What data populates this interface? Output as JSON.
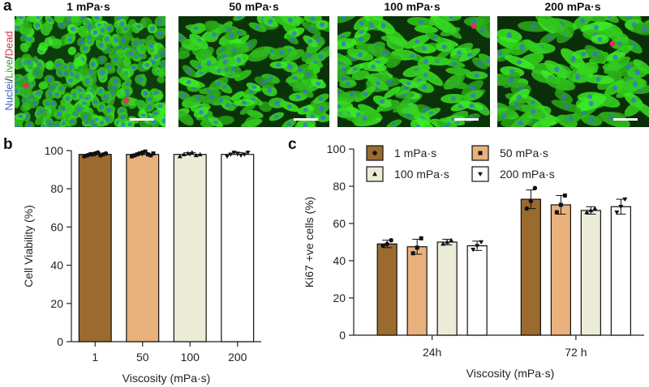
{
  "panels": {
    "a": {
      "letter": "a",
      "stain_label": {
        "nuclei": "Nuclei",
        "sep1": "/",
        "live": "Live",
        "sep2": "/",
        "dead": "Dead"
      },
      "images": [
        {
          "title": "1 mPa·s"
        },
        {
          "title": "50 mPa·s"
        },
        {
          "title": "100 mPa·s"
        },
        {
          "title": "200 mPa·s"
        }
      ],
      "colors": {
        "nuclei": "#3b6fd8",
        "live": "#3fd12a",
        "dead": "#e0354a"
      }
    },
    "b": {
      "letter": "b"
    },
    "c": {
      "letter": "c"
    }
  },
  "chart_data": [
    {
      "type": "bar",
      "panel": "b",
      "categories": [
        "1",
        "50",
        "100",
        "200"
      ],
      "values": [
        98,
        98,
        98,
        98
      ],
      "error": [
        1,
        1,
        1,
        1
      ],
      "points": [
        [
          97,
          97.5,
          98,
          98,
          98.5,
          99,
          97.5,
          98,
          98.5
        ],
        [
          97,
          97.5,
          98,
          98.5,
          99,
          99.5,
          98,
          97.5,
          98.5
        ],
        [
          97,
          98,
          98.5,
          99,
          97.5,
          98
        ],
        [
          97,
          98,
          99,
          98.5,
          97.5,
          98,
          99
        ]
      ],
      "markers": [
        "circle",
        "square",
        "triangle",
        "triangle-down"
      ],
      "colors": [
        "#9a6a2e",
        "#e9b17b",
        "#ecebd7",
        "#ffffff"
      ],
      "xlabel": "Viscosity (mPa·s)",
      "ylabel": "Cell Viability (%)",
      "ylim": [
        0,
        100
      ],
      "yticks": [
        "0",
        "20",
        "40",
        "60",
        "80",
        "100"
      ],
      "grid": false
    },
    {
      "type": "bar",
      "panel": "c",
      "categories": [
        "24h",
        "72 h"
      ],
      "series": [
        {
          "name": "1 mPa·s",
          "marker": "circle",
          "color": "#9a6a2e",
          "values": [
            49,
            73
          ],
          "error": [
            2,
            5
          ],
          "points": [
            [
              48,
              49,
              51
            ],
            [
              68,
              72,
              79
            ]
          ]
        },
        {
          "name": "50 mPa·s",
          "marker": "square",
          "color": "#e9b17b",
          "values": [
            47.5,
            70
          ],
          "error": [
            4,
            5
          ],
          "points": [
            [
              44,
              47,
              52
            ],
            [
              66,
              70,
              75
            ]
          ]
        },
        {
          "name": "100 mPa·s",
          "marker": "triangle",
          "color": "#ecebd7",
          "values": [
            50,
            67
          ],
          "error": [
            1.5,
            2
          ],
          "points": [
            [
              49,
              50,
              51
            ],
            [
              66,
              67,
              68
            ]
          ]
        },
        {
          "name": "200 mPa·s",
          "marker": "triangle-down",
          "color": "#ffffff",
          "values": [
            48,
            69
          ],
          "error": [
            2.5,
            4
          ],
          "points": [
            [
              46,
              48,
              50
            ],
            [
              66,
              69,
              73
            ]
          ]
        }
      ],
      "xlabel": "Viscosity (mPa·s)",
      "ylabel": "Ki67 +ve cells (%)",
      "ylim": [
        0,
        100
      ],
      "yticks": [
        "0",
        "20",
        "40",
        "60",
        "80",
        "100"
      ],
      "legend": "top",
      "grid": false
    }
  ]
}
